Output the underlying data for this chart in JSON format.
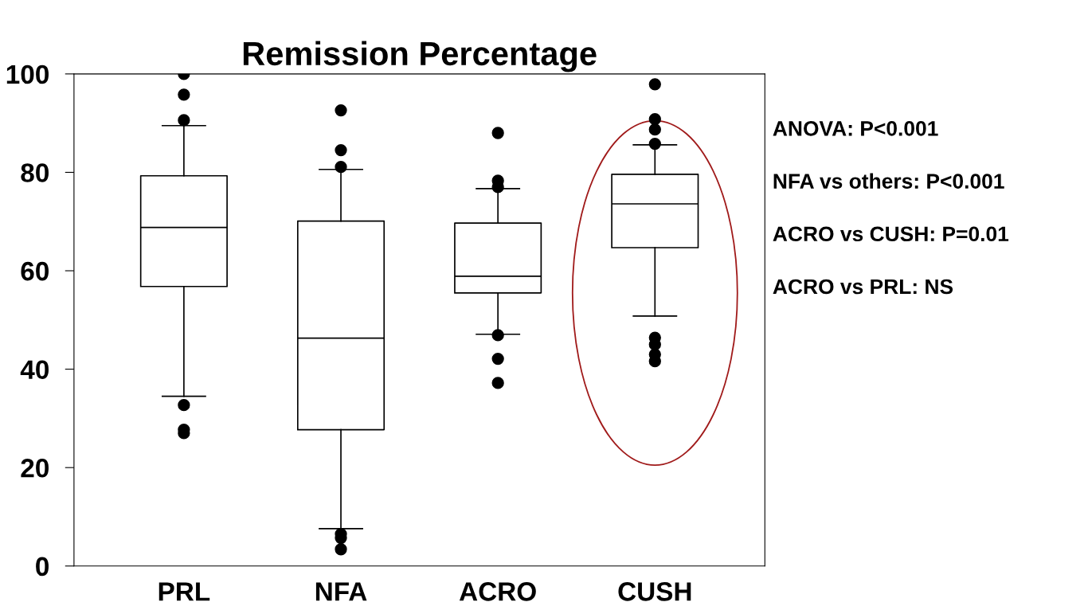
{
  "chart_data": {
    "type": "box",
    "title": "Remission Percentage",
    "categories": [
      "PRL",
      "NFA",
      "ACRO",
      "CUSH"
    ],
    "boxes": [
      {
        "low": 34.5,
        "q1": 56.8,
        "median": 68.8,
        "q3": 79.3,
        "high": 89.5,
        "outliers": [
          100,
          95.8,
          90.6,
          32.7,
          27.7,
          27.0
        ]
      },
      {
        "low": 7.6,
        "q1": 27.7,
        "median": 46.3,
        "q3": 70.1,
        "high": 80.6,
        "outliers": [
          92.6,
          84.5,
          81.1,
          6.5,
          5.7,
          3.4
        ]
      },
      {
        "low": 47.1,
        "q1": 55.5,
        "median": 58.9,
        "q3": 69.7,
        "high": 76.7,
        "outliers": [
          88.0,
          78.3,
          77.0,
          46.9,
          42.1,
          37.2
        ]
      },
      {
        "low": 50.8,
        "q1": 64.7,
        "median": 73.6,
        "q3": 79.6,
        "high": 85.6,
        "outliers": [
          97.9,
          90.8,
          88.7,
          85.8,
          46.4,
          45.0,
          43.0,
          41.6
        ]
      }
    ],
    "color": "#000000",
    "ylim": [
      0,
      100
    ],
    "yticks": [
      0,
      20,
      40,
      60,
      80,
      100
    ],
    "grid": false,
    "annotations": [
      "ANOVA: P<0.001",
      "NFA vs others: P<0.001",
      "ACRO vs CUSH: P=0.01",
      "ACRO vs PRL: NS"
    ]
  }
}
